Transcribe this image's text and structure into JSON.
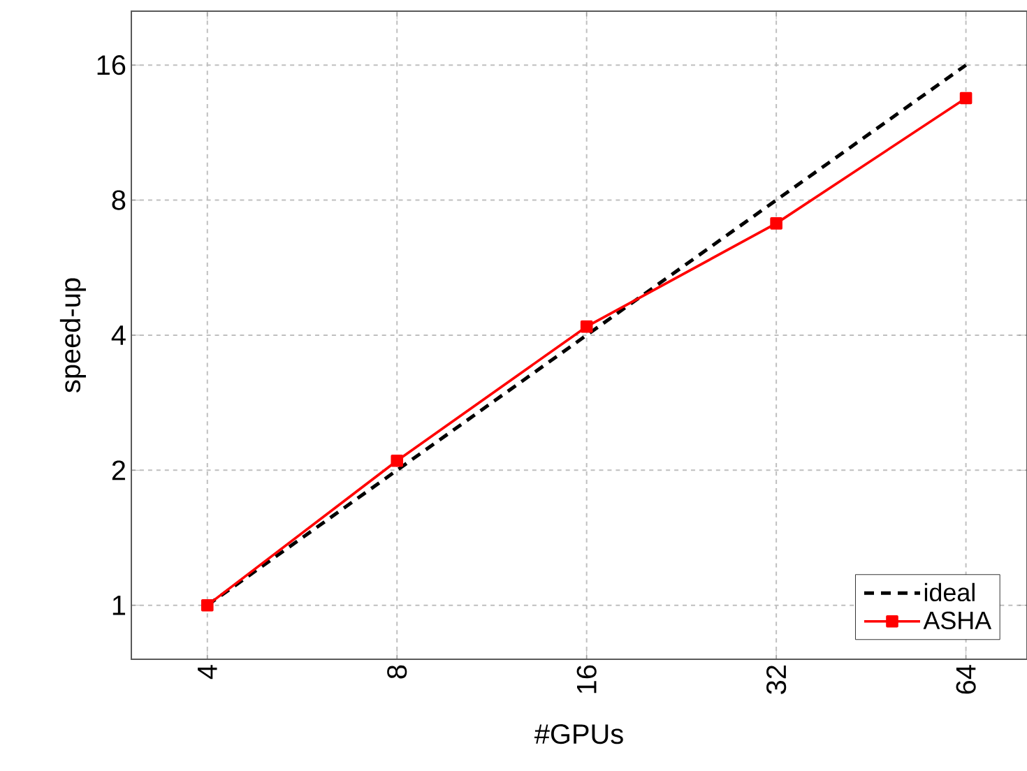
{
  "chart_data": {
    "type": "line",
    "xlabel": "#GPUs",
    "ylabel": "speed-up",
    "x": [
      4,
      8,
      16,
      32,
      64
    ],
    "log": "xy",
    "xlim": [
      3.03,
      80
    ],
    "ylim": [
      0.758,
      21.1
    ],
    "xticks": [
      4,
      8,
      16,
      32,
      64
    ],
    "yticks": [
      1,
      2,
      4,
      8,
      16
    ],
    "grid": true,
    "legend": "bottom right",
    "series": [
      {
        "name": "ideal",
        "color": "#000000",
        "values": [
          1,
          2,
          4,
          8,
          16
        ],
        "line_style": "dashed",
        "marker": "none"
      },
      {
        "name": "ASHA",
        "color": "#ff0000",
        "values": [
          1,
          2.1,
          4.18,
          7.1,
          13.5
        ],
        "line_style": "solid",
        "marker": "square"
      }
    ]
  }
}
